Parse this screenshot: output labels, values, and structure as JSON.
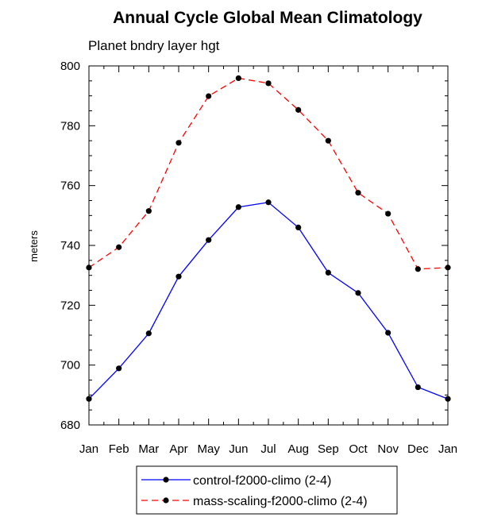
{
  "chart_data": {
    "type": "line",
    "title": "Annual Cycle Global Mean Climatology",
    "subtitle": "Planet bndry layer hgt",
    "xlabel": "",
    "ylabel": "meters",
    "categories": [
      "Jan",
      "Feb",
      "Mar",
      "Apr",
      "May",
      "Jun",
      "Jul",
      "Aug",
      "Sep",
      "Oct",
      "Nov",
      "Dec",
      "Jan"
    ],
    "ylim": [
      680,
      800
    ],
    "yticks": [
      680,
      700,
      720,
      740,
      760,
      780,
      800
    ],
    "grid": false,
    "legend_position": "bottom",
    "series": [
      {
        "name": "control-f2000-climo (2-4)",
        "color": "#0000ff",
        "line_style": "solid",
        "marker": "filled-circle",
        "values": [
          688.7,
          698.9,
          710.6,
          729.6,
          741.8,
          752.8,
          754.4,
          746.0,
          730.9,
          724.1,
          710.8,
          692.6,
          688.7
        ]
      },
      {
        "name": "mass-scaling-f2000-climo (2-4)",
        "color": "#ff0000",
        "line_style": "dashed",
        "marker": "filled-circle",
        "values": [
          732.6,
          739.4,
          751.5,
          774.3,
          789.9,
          795.9,
          794.2,
          785.3,
          775.0,
          757.6,
          750.6,
          732.1,
          732.6
        ]
      }
    ]
  }
}
